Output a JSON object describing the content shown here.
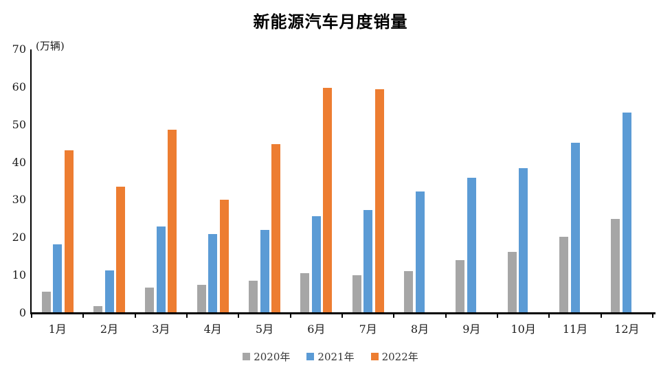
{
  "title": "新能源汽车月度销量",
  "y_axis_unit": "(万辆)",
  "chart_data": {
    "type": "bar",
    "title": "新能源汽车月度销量",
    "xlabel": "",
    "ylabel": "(万辆)",
    "ylim": [
      0,
      70
    ],
    "yticks": [
      0,
      10,
      20,
      30,
      40,
      50,
      60,
      70
    ],
    "grid": false,
    "legend_position": "bottom",
    "categories": [
      "1月",
      "2月",
      "3月",
      "4月",
      "5月",
      "6月",
      "7月",
      "8月",
      "9月",
      "10月",
      "11月",
      "12月"
    ],
    "series": [
      {
        "name": "2020年",
        "color": "#a6a6a6",
        "values": [
          5.4,
          1.6,
          6.6,
          7.3,
          8.3,
          10.4,
          9.9,
          11.0,
          13.8,
          16.0,
          20.0,
          24.8
        ]
      },
      {
        "name": "2021年",
        "color": "#5b9bd5",
        "values": [
          18.0,
          11.1,
          22.7,
          20.7,
          21.8,
          25.6,
          27.1,
          32.1,
          35.7,
          38.3,
          45.0,
          53.1
        ]
      },
      {
        "name": "2022年",
        "color": "#ed7d31",
        "values": [
          43.1,
          33.4,
          48.4,
          29.9,
          44.7,
          59.6,
          59.3,
          null,
          null,
          null,
          null,
          null
        ]
      }
    ]
  }
}
